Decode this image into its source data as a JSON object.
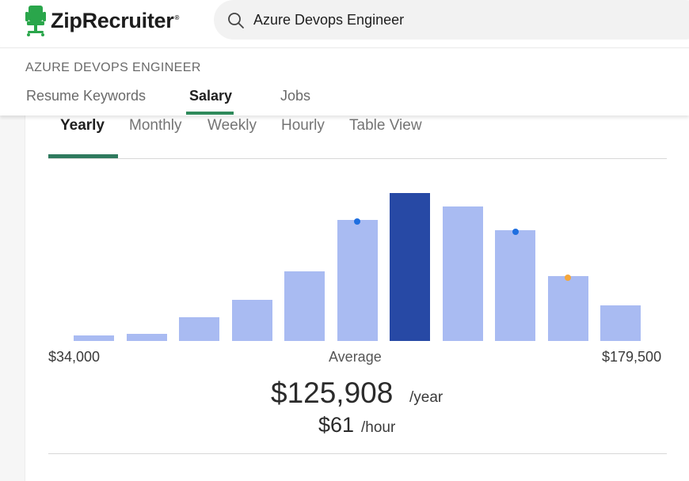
{
  "brand": {
    "name": "ZipRecruiter",
    "reg": "®",
    "color": "#2aa64b"
  },
  "search": {
    "value": "Azure Devops Engineer"
  },
  "job_title": "AZURE DEVOPS ENGINEER",
  "subtabs": [
    {
      "label": "Resume Keywords",
      "active": false
    },
    {
      "label": "Salary",
      "active": true
    },
    {
      "label": "Jobs",
      "active": false
    }
  ],
  "period_tabs": [
    {
      "label": "Yearly",
      "active": true
    },
    {
      "label": "Monthly",
      "active": false
    },
    {
      "label": "Weekly",
      "active": false
    },
    {
      "label": "Hourly",
      "active": false
    },
    {
      "label": "Table View",
      "active": false
    }
  ],
  "chart_data": {
    "type": "bar",
    "bar_color": "#a9bbf2",
    "highlight_color": "#2749a5",
    "highlight_index": 6,
    "relative_values": [
      4,
      5,
      16,
      28,
      47,
      82,
      100,
      91,
      75,
      44,
      24
    ],
    "markers": [
      {
        "bar": 5,
        "color": "#1f6fe0"
      },
      {
        "bar": 8,
        "color": "#1f6fe0"
      },
      {
        "bar": 9,
        "color": "#f5a73b"
      }
    ],
    "x_range_labels": {
      "min": "$34,000",
      "mid": "Average",
      "max": "$179,500"
    }
  },
  "average": {
    "yearly": "$125,908",
    "yearly_unit": "/year",
    "hourly": "$61",
    "hourly_unit": "/hour"
  }
}
